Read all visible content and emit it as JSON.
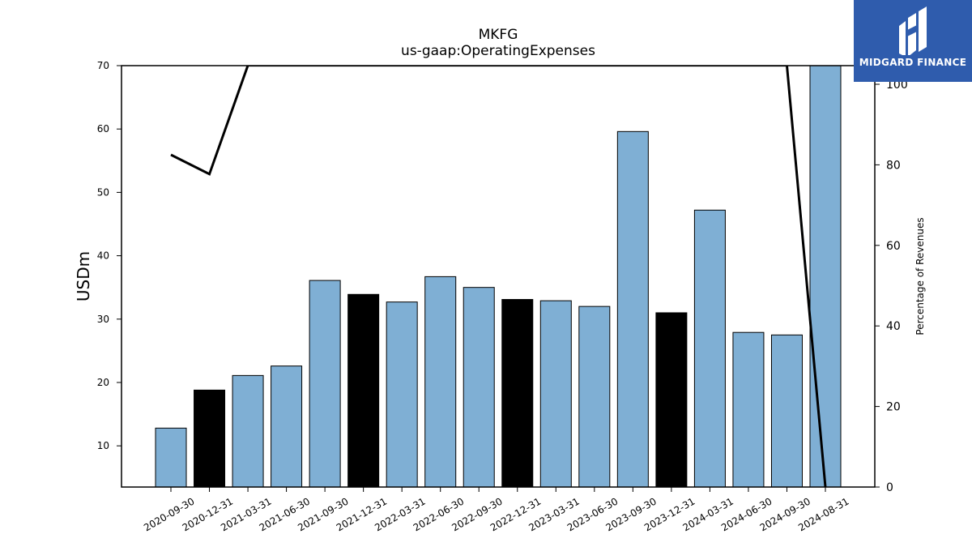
{
  "logo": {
    "text": "MIDGARD FINANCE",
    "bg_color": "#2f5cad"
  },
  "chart_data": {
    "type": "bar",
    "title": "MKFG",
    "subtitle": "us-gaap:OperatingExpenses",
    "ylabel": "USDm",
    "y2label": "Percentage of Revenues",
    "ylim": [
      3.5,
      70
    ],
    "y2lim": [
      0,
      100
    ],
    "yticks": [
      10,
      20,
      30,
      40,
      50,
      60,
      70
    ],
    "y2ticks": [
      0,
      20,
      40,
      60,
      80,
      100
    ],
    "categories": [
      "2020-09-30",
      "2020-12-31",
      "2021-03-31",
      "2021-06-30",
      "2021-09-30",
      "2021-12-31",
      "2022-03-31",
      "2022-06-30",
      "2022-09-30",
      "2022-12-31",
      "2023-03-31",
      "2023-06-30",
      "2023-09-30",
      "2023-12-31",
      "2024-03-31",
      "2024-06-30",
      "2024-09-30",
      "2024-08-31"
    ],
    "values": [
      12.8,
      18.8,
      21.1,
      22.6,
      36.1,
      33.9,
      32.7,
      36.7,
      35.0,
      33.1,
      32.9,
      32.0,
      59.6,
      31.0,
      47.2,
      27.9,
      27.5,
      70.0
    ],
    "bar_colors": [
      "#7fafd4",
      "#000000",
      "#7fafd4",
      "#7fafd4",
      "#7fafd4",
      "#000000",
      "#7fafd4",
      "#7fafd4",
      "#7fafd4",
      "#000000",
      "#7fafd4",
      "#7fafd4",
      "#7fafd4",
      "#000000",
      "#7fafd4",
      "#7fafd4",
      "#7fafd4",
      "#7fafd4"
    ],
    "line_series": {
      "axis": "right",
      "color": "#000000",
      "points": [
        {
          "category": "2020-09-30",
          "value": 82.5
        },
        {
          "category": "2020-12-31",
          "value": 77.7
        },
        {
          "category": "2021-03-31",
          "value": 104.7
        },
        {
          "category": "2024-09-30",
          "value": 104.7
        },
        {
          "category": "2024-08-31",
          "value": 0
        }
      ]
    }
  }
}
